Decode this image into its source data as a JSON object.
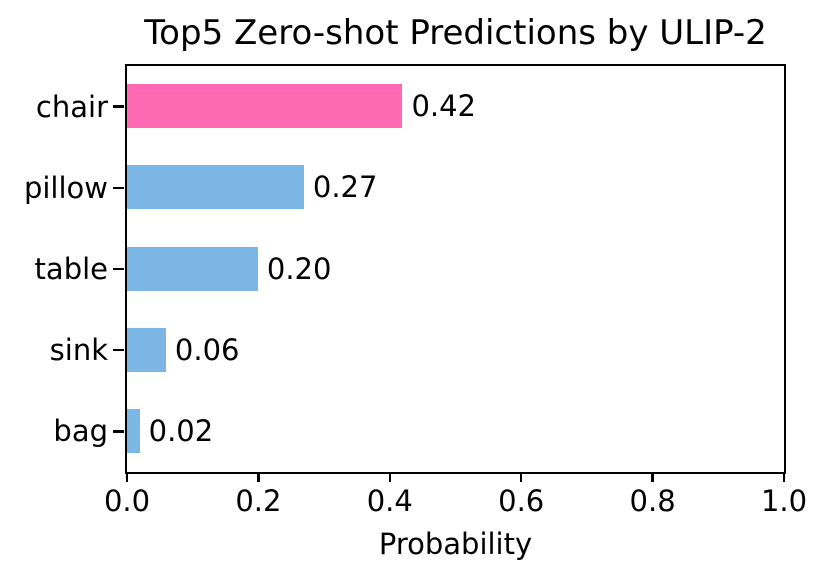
{
  "chart_data": {
    "type": "bar",
    "orientation": "horizontal",
    "title": "Top5 Zero-shot Predictions by ULIP-2",
    "categories": [
      "chair",
      "pillow",
      "table",
      "sink",
      "bag"
    ],
    "values": [
      0.42,
      0.27,
      0.2,
      0.06,
      0.02
    ],
    "value_labels": [
      "0.42",
      "0.27",
      "0.20",
      "0.06",
      "0.02"
    ],
    "bar_colors": [
      "#FF69B4",
      "#7CB6E4",
      "#7CB6E4",
      "#7CB6E4",
      "#7CB6E4"
    ],
    "highlight_color": "#FF69B4",
    "default_color": "#7CB6E4",
    "xlabel": "Probability",
    "ylabel": "",
    "xlim": [
      0.0,
      1.0
    ],
    "x_tick_labels": [
      "0.0",
      "0.2",
      "0.4",
      "0.6",
      "0.8",
      "1.0"
    ],
    "x_tick_values": [
      0.0,
      0.2,
      0.4,
      0.6,
      0.8,
      1.0
    ],
    "grid": false,
    "legend_position": "none",
    "axis_color": "#000000",
    "background_color": "#FFFFFF"
  }
}
